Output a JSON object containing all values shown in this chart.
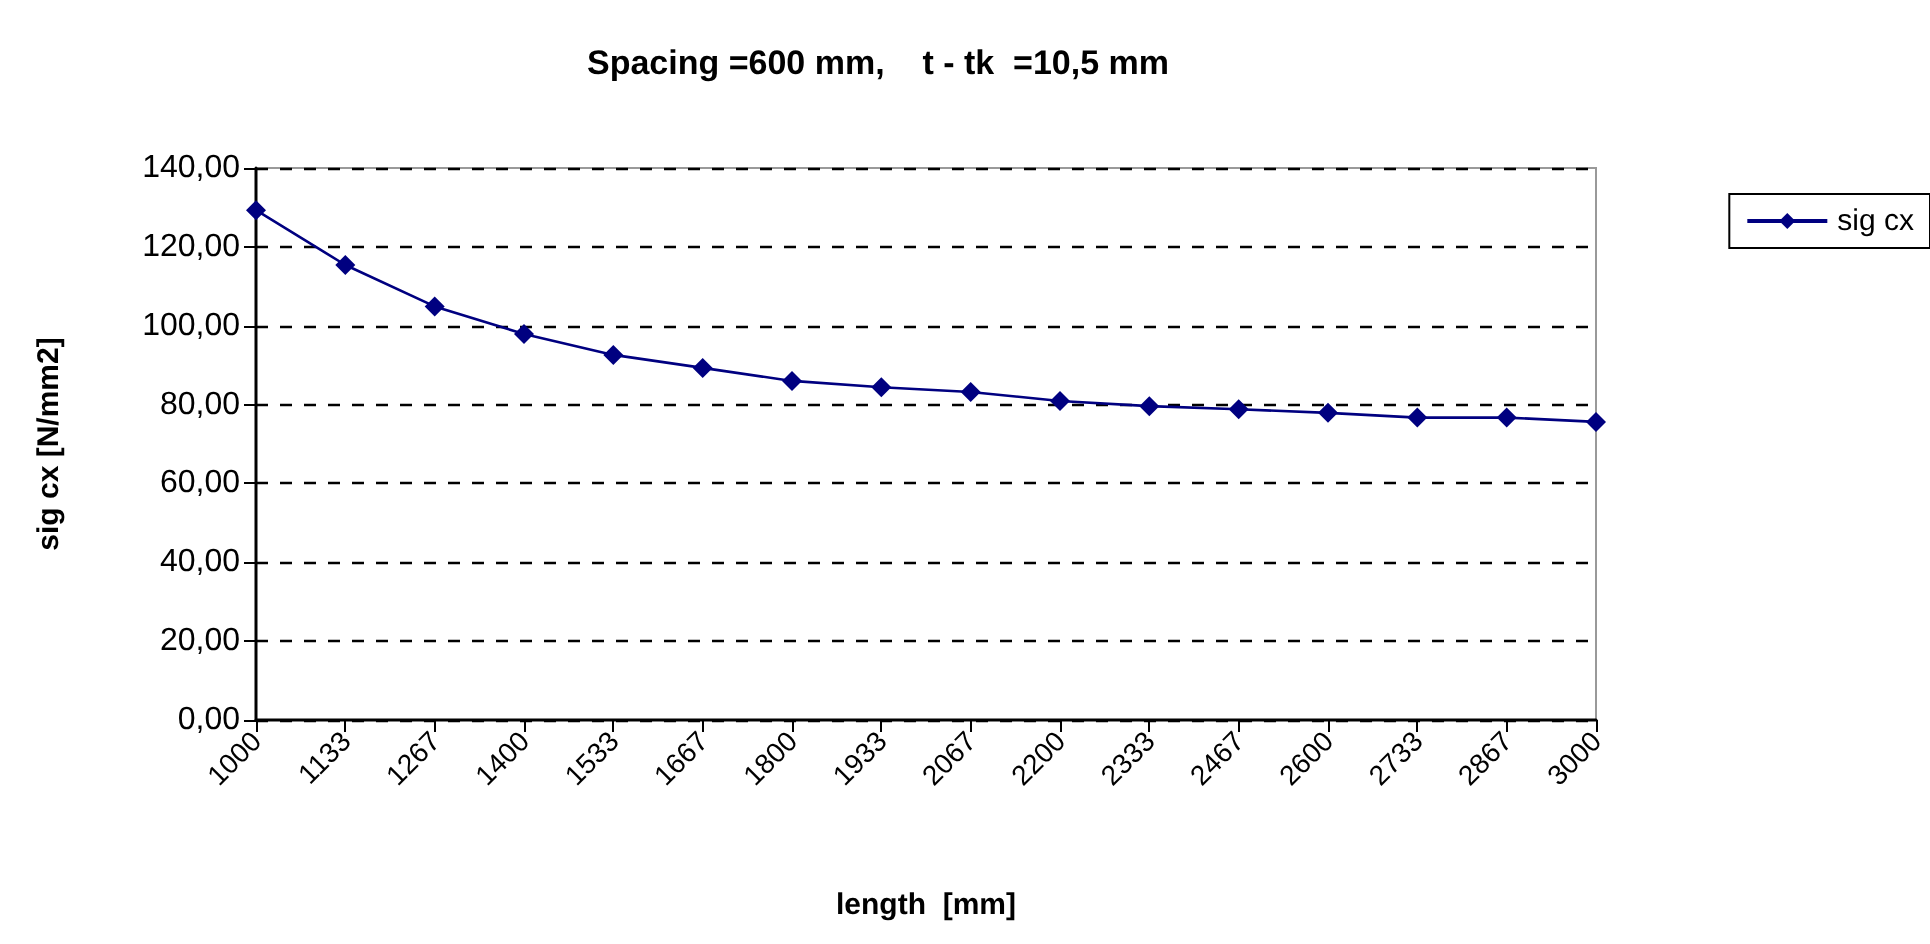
{
  "chart_data": {
    "type": "line",
    "title": "Spacing =600 mm,    t - tk  =10,5 mm",
    "xlabel": "length  [mm]",
    "ylabel": "sig cx [N/mm2]",
    "categories": [
      "1000",
      "1133",
      "1267",
      "1400",
      "1533",
      "1667",
      "1800",
      "1933",
      "2067",
      "2200",
      "2333",
      "2467",
      "2600",
      "2733",
      "2867",
      "3000"
    ],
    "series": [
      {
        "name": "sig cx",
        "color": "#000080",
        "values": [
          129.3,
          115.4,
          104.9,
          97.9,
          92.6,
          89.3,
          86.0,
          84.4,
          83.2,
          80.9,
          79.6,
          78.8,
          77.9,
          76.7,
          76.7,
          75.6
        ]
      }
    ],
    "ylim": [
      0,
      140
    ],
    "yticks": [
      {
        "value": 0,
        "label": "0,00"
      },
      {
        "value": 20,
        "label": "20,00"
      },
      {
        "value": 40,
        "label": "40,00"
      },
      {
        "value": 60,
        "label": "60,00"
      },
      {
        "value": 80,
        "label": "80,00"
      },
      {
        "value": 100,
        "label": "100,00"
      },
      {
        "value": 120,
        "label": "120,00"
      },
      {
        "value": 140,
        "label": "140,00"
      }
    ],
    "grid": "y",
    "legend": "top right",
    "marker": "diamond",
    "line_style": "solid"
  }
}
